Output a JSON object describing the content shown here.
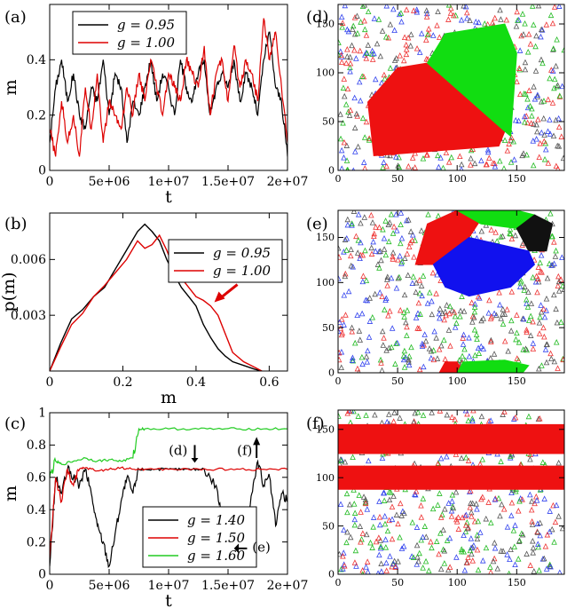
{
  "chart_data": [
    {
      "panel": "(a)",
      "type": "line",
      "xlabel": "t",
      "ylabel": "m",
      "xlim": [
        0,
        20000000
      ],
      "ylim": [
        0,
        0.6
      ],
      "xticks": [
        0,
        5000000,
        10000000,
        15000000,
        20000000
      ],
      "xtick_labels": [
        "0",
        "5e+06",
        "1e+07",
        "1.5e+07",
        "2e+07"
      ],
      "yticks": [
        0,
        0.2,
        0.4
      ],
      "ytick_labels": [
        "0",
        "0.2",
        "0.4"
      ],
      "legend": "top-left",
      "series": [
        {
          "name": "g = 0.95",
          "color": "#000000",
          "x": [
            0,
            500000,
            1000000,
            1500000,
            2000000,
            2500000,
            3000000,
            3500000,
            4000000,
            4500000,
            5000000,
            5500000,
            6000000,
            6500000,
            7000000,
            7500000,
            8000000,
            8500000,
            9000000,
            9500000,
            10000000,
            10500000,
            11000000,
            11500000,
            12000000,
            12500000,
            13000000,
            13500000,
            14000000,
            14500000,
            15000000,
            15500000,
            16000000,
            16500000,
            17000000,
            17500000,
            18000000,
            18500000,
            19000000,
            19500000,
            20000000
          ],
          "values": [
            0.1,
            0.3,
            0.4,
            0.25,
            0.35,
            0.2,
            0.15,
            0.3,
            0.25,
            0.4,
            0.2,
            0.35,
            0.3,
            0.1,
            0.25,
            0.2,
            0.3,
            0.4,
            0.25,
            0.35,
            0.3,
            0.2,
            0.4,
            0.3,
            0.25,
            0.35,
            0.4,
            0.2,
            0.3,
            0.35,
            0.3,
            0.4,
            0.25,
            0.35,
            0.3,
            0.2,
            0.4,
            0.5,
            0.3,
            0.25,
            0.05
          ]
        },
        {
          "name": "g = 1.00",
          "color": "#dd0000",
          "x": [
            0,
            500000,
            1000000,
            1500000,
            2000000,
            2500000,
            3000000,
            3500000,
            4000000,
            4500000,
            5000000,
            5500000,
            6000000,
            6500000,
            7000000,
            7500000,
            8000000,
            8500000,
            9000000,
            9500000,
            10000000,
            10500000,
            11000000,
            11500000,
            12000000,
            12500000,
            13000000,
            13500000,
            14000000,
            14500000,
            15000000,
            15500000,
            16000000,
            16500000,
            17000000,
            17500000,
            18000000,
            18500000,
            19000000,
            19500000,
            20000000
          ],
          "values": [
            0.15,
            0.05,
            0.25,
            0.1,
            0.2,
            0.05,
            0.3,
            0.15,
            0.35,
            0.1,
            0.25,
            0.2,
            0.15,
            0.3,
            0.2,
            0.35,
            0.25,
            0.4,
            0.3,
            0.2,
            0.35,
            0.3,
            0.25,
            0.4,
            0.35,
            0.3,
            0.45,
            0.2,
            0.35,
            0.4,
            0.25,
            0.45,
            0.3,
            0.4,
            0.35,
            0.25,
            0.55,
            0.4,
            0.5,
            0.3,
            0.1
          ]
        }
      ]
    },
    {
      "panel": "(b)",
      "type": "line",
      "xlabel": "m",
      "ylabel": "p(m)",
      "xlim": [
        0,
        0.65
      ],
      "ylim": [
        0,
        0.0085
      ],
      "xticks": [
        0,
        0.2,
        0.4,
        0.6
      ],
      "xtick_labels": [
        "0",
        "0.2",
        "0.4",
        "0.6"
      ],
      "yticks": [
        0.003,
        0.006
      ],
      "ytick_labels": [
        "0.003",
        "0.006"
      ],
      "legend": "top-right",
      "annotation": "red arrow pointing at shoulder near m = 0.45",
      "series": [
        {
          "name": "g = 0.95",
          "color": "#000000",
          "x": [
            0,
            0.03,
            0.06,
            0.09,
            0.12,
            0.15,
            0.18,
            0.21,
            0.24,
            0.26,
            0.28,
            0.3,
            0.32,
            0.34,
            0.36,
            0.38,
            0.4,
            0.42,
            0.44,
            0.46,
            0.48,
            0.5,
            0.53,
            0.56,
            0.58
          ],
          "values": [
            0.0,
            0.0015,
            0.0028,
            0.0033,
            0.004,
            0.0045,
            0.0055,
            0.0065,
            0.0075,
            0.0079,
            0.0075,
            0.007,
            0.006,
            0.0052,
            0.0045,
            0.004,
            0.0035,
            0.0025,
            0.0018,
            0.0012,
            0.0008,
            0.0005,
            0.0003,
            0.0001,
            0.0
          ]
        },
        {
          "name": "g = 1.00",
          "color": "#dd0000",
          "x": [
            0,
            0.03,
            0.06,
            0.09,
            0.12,
            0.15,
            0.18,
            0.21,
            0.24,
            0.26,
            0.28,
            0.3,
            0.32,
            0.34,
            0.36,
            0.38,
            0.4,
            0.42,
            0.44,
            0.46,
            0.48,
            0.5,
            0.53,
            0.56,
            0.58
          ],
          "values": [
            0.0,
            0.0013,
            0.0025,
            0.0031,
            0.004,
            0.0046,
            0.0053,
            0.006,
            0.007,
            0.0066,
            0.0068,
            0.0073,
            0.0065,
            0.0055,
            0.005,
            0.0045,
            0.004,
            0.0038,
            0.0035,
            0.003,
            0.002,
            0.001,
            0.0005,
            0.0002,
            0.0
          ]
        }
      ]
    },
    {
      "panel": "(c)",
      "type": "line",
      "xlabel": "t",
      "ylabel": "m",
      "xlim": [
        0,
        20000000
      ],
      "ylim": [
        0,
        1
      ],
      "xticks": [
        0,
        5000000,
        10000000,
        15000000,
        20000000
      ],
      "xtick_labels": [
        "0",
        "5e+06",
        "1e+07",
        "1.5e+07",
        "2e+07"
      ],
      "yticks": [
        0,
        0.2,
        0.4,
        0.6,
        0.8,
        1
      ],
      "ytick_labels": [
        "0",
        "0.2",
        "0.4",
        "0.6",
        "0.8",
        "1"
      ],
      "legend": "bottom-center",
      "annotations": [
        "(d)",
        "(f)",
        "(e)"
      ],
      "series": [
        {
          "name": "g = 1.40",
          "color": "#000000",
          "x": [
            0,
            500000,
            1000000,
            1500000,
            2000000,
            2500000,
            3000000,
            3500000,
            4000000,
            4500000,
            5000000,
            5500000,
            6000000,
            6500000,
            7000000,
            7500000,
            8000000,
            9000000,
            10000000,
            11000000,
            12000000,
            13000000,
            14000000,
            14500000,
            15000000,
            15500000,
            16000000,
            16500000,
            17000000,
            17500000,
            18000000,
            18500000,
            19000000,
            19500000,
            20000000
          ],
          "values": [
            0.05,
            0.6,
            0.5,
            0.65,
            0.6,
            0.55,
            0.65,
            0.5,
            0.3,
            0.2,
            0.05,
            0.25,
            0.45,
            0.6,
            0.5,
            0.65,
            0.65,
            0.65,
            0.65,
            0.65,
            0.65,
            0.65,
            0.55,
            0.35,
            0.2,
            0.4,
            0.15,
            0.3,
            0.5,
            0.7,
            0.55,
            0.6,
            0.3,
            0.5,
            0.45
          ]
        },
        {
          "name": "g = 1.50",
          "color": "#dd0000",
          "x": [
            0,
            500000,
            1000000,
            1500000,
            2000000,
            2500000,
            3000000,
            4000000,
            5000000,
            6000000,
            7000000,
            8000000,
            10000000,
            12000000,
            14000000,
            16000000,
            18000000,
            20000000
          ],
          "values": [
            0.1,
            0.6,
            0.45,
            0.65,
            0.55,
            0.65,
            0.66,
            0.64,
            0.65,
            0.66,
            0.65,
            0.65,
            0.65,
            0.65,
            0.65,
            0.65,
            0.65,
            0.65
          ]
        },
        {
          "name": "g = 1.60",
          "color": "#22cc22",
          "x": [
            0,
            500000,
            1000000,
            2000000,
            3000000,
            4000000,
            5000000,
            6000000,
            7000000,
            7500000,
            8000000,
            10000000,
            12000000,
            14000000,
            16000000,
            18000000,
            20000000
          ],
          "values": [
            0.6,
            0.7,
            0.68,
            0.7,
            0.72,
            0.7,
            0.71,
            0.7,
            0.72,
            0.9,
            0.9,
            0.9,
            0.9,
            0.9,
            0.9,
            0.9,
            0.9
          ]
        }
      ]
    },
    {
      "panel": "(d)",
      "type": "scatter",
      "xlim": [
        0,
        190
      ],
      "ylim": [
        0,
        170
      ],
      "xticks": [
        0,
        50,
        100,
        150
      ],
      "xtick_labels": [
        "0",
        "50",
        "100",
        "150"
      ],
      "yticks": [
        0,
        50,
        100,
        150
      ],
      "ytick_labels": [
        "0",
        "50",
        "100",
        "150"
      ],
      "regions": [
        {
          "color": "#ee1111",
          "polygon": [
            [
              25,
              70
            ],
            [
              50,
              105
            ],
            [
              75,
              110
            ],
            [
              140,
              40
            ],
            [
              135,
              25
            ],
            [
              30,
              15
            ]
          ]
        },
        {
          "color": "#11dd11",
          "polygon": [
            [
              75,
              110
            ],
            [
              90,
              140
            ],
            [
              140,
              150
            ],
            [
              150,
              120
            ],
            [
              145,
              35
            ],
            [
              140,
              40
            ]
          ]
        }
      ]
    },
    {
      "panel": "(e)",
      "type": "scatter",
      "xlim": [
        0,
        190
      ],
      "ylim": [
        0,
        180
      ],
      "xticks": [
        0,
        50,
        100,
        150
      ],
      "xtick_labels": [
        "0",
        "50",
        "100",
        "150"
      ],
      "yticks": [
        0,
        50,
        100,
        150
      ],
      "ytick_labels": [
        "0",
        "50",
        "100",
        "150"
      ],
      "regions": [
        {
          "color": "#ee1111",
          "polygon": [
            [
              65,
              120
            ],
            [
              75,
              165
            ],
            [
              100,
              180
            ],
            [
              120,
              170
            ],
            [
              110,
              150
            ],
            [
              80,
              120
            ]
          ]
        },
        {
          "color": "#11dd11",
          "polygon": [
            [
              100,
              180
            ],
            [
              150,
              180
            ],
            [
              165,
              175
            ],
            [
              150,
              160
            ],
            [
              120,
              165
            ]
          ]
        },
        {
          "color": "#111111",
          "polygon": [
            [
              150,
              160
            ],
            [
              165,
              175
            ],
            [
              180,
              165
            ],
            [
              175,
              135
            ],
            [
              160,
              135
            ]
          ]
        },
        {
          "color": "#1111ee",
          "polygon": [
            [
              80,
              120
            ],
            [
              110,
              150
            ],
            [
              160,
              135
            ],
            [
              165,
              120
            ],
            [
              145,
              95
            ],
            [
              110,
              85
            ],
            [
              90,
              95
            ]
          ]
        },
        {
          "color": "#ee1111",
          "polygon": [
            [
              85,
              0
            ],
            [
              90,
              12
            ],
            [
              100,
              12
            ],
            [
              105,
              0
            ]
          ]
        },
        {
          "color": "#11dd11",
          "polygon": [
            [
              100,
              0
            ],
            [
              105,
              12
            ],
            [
              140,
              14
            ],
            [
              160,
              8
            ],
            [
              155,
              0
            ]
          ]
        }
      ]
    },
    {
      "panel": "(f)",
      "type": "scatter",
      "xlim": [
        0,
        190
      ],
      "ylim": [
        0,
        170
      ],
      "xticks": [
        0,
        50,
        100,
        150
      ],
      "xtick_labels": [
        "0",
        "50",
        "100",
        "150"
      ],
      "yticks": [
        0,
        50,
        100,
        150
      ],
      "ytick_labels": [
        "0",
        "50",
        "100",
        "150"
      ],
      "regions": [
        {
          "color": "#ee1111",
          "polygon": [
            [
              0,
              125
            ],
            [
              190,
              125
            ],
            [
              190,
              155
            ],
            [
              0,
              155
            ]
          ]
        },
        {
          "color": "#ee1111",
          "polygon": [
            [
              0,
              88
            ],
            [
              190,
              88
            ],
            [
              190,
              112
            ],
            [
              0,
              112
            ]
          ]
        }
      ]
    }
  ]
}
